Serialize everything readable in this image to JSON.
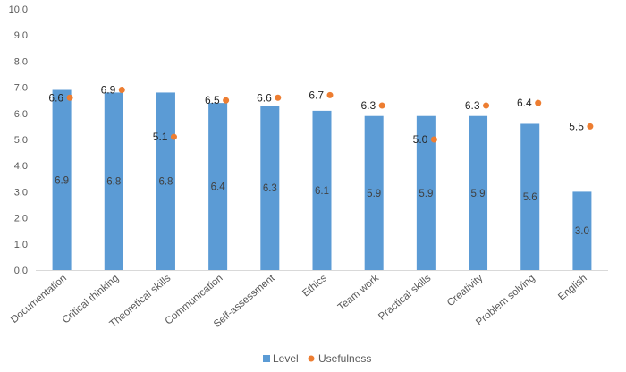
{
  "chart_data": {
    "type": "bar",
    "categories": [
      "Documentation",
      "Critical thinking",
      "Theoretical skills",
      "Communication",
      "Self-assessment",
      "Ethics",
      "Team work",
      "Practical skills",
      "Creativity",
      "Problem solving",
      "English"
    ],
    "series": [
      {
        "name": "Level",
        "kind": "bar",
        "values": [
          6.9,
          6.8,
          6.8,
          6.4,
          6.3,
          6.1,
          5.9,
          5.9,
          5.9,
          5.6,
          3.0
        ],
        "color": "#5B9BD5"
      },
      {
        "name": "Usefulness",
        "kind": "scatter",
        "values": [
          6.6,
          6.9,
          5.1,
          6.5,
          6.6,
          6.7,
          6.3,
          5.0,
          6.3,
          6.4,
          5.5
        ],
        "color": "#ED7D31"
      }
    ],
    "y_ticks": [
      "0.0",
      "1.0",
      "2.0",
      "3.0",
      "4.0",
      "5.0",
      "6.0",
      "7.0",
      "8.0",
      "9.0",
      "10.0"
    ],
    "ylim": [
      0,
      10
    ],
    "legend_position": "bottom",
    "grid": false
  }
}
